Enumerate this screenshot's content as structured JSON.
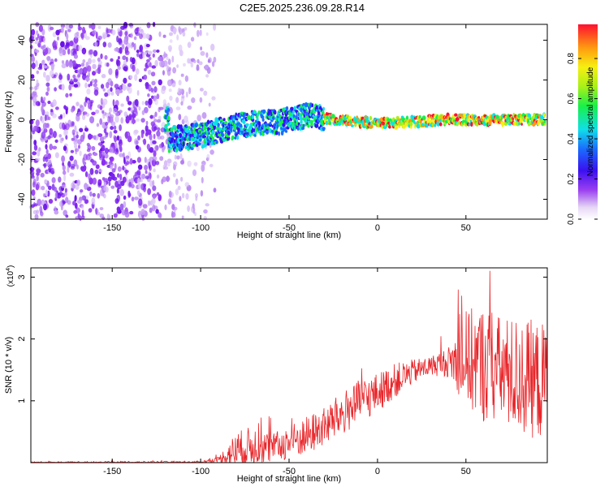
{
  "figure_title": "C2E5.2025.236.09.28.R14",
  "chart_data": [
    {
      "type": "heatmap",
      "title": "C2E5.2025.236.09.28.R14",
      "xlabel": "Height of straight line (km)",
      "ylabel": "Frequency (Hz)",
      "xlim": [
        -196,
        96
      ],
      "ylim": [
        -50,
        48
      ],
      "xticks": [
        -150,
        -100,
        -50,
        0,
        50
      ],
      "yticks": [
        -40,
        -20,
        0,
        20,
        40
      ],
      "colorbar": {
        "label": "Normalized spectral amplitude",
        "range": [
          0,
          0.97
        ],
        "ticks": [
          0.0,
          0.2,
          0.4,
          0.6,
          0.8
        ],
        "tick_labels": [
          "0.0",
          "0.2",
          "0.4",
          "0.6",
          "0.8"
        ],
        "colormap": "rainbow (purple-blue-cyan-green-yellow-red)"
      },
      "description_values": {
        "noise_region_x": [
          -196,
          -100
        ],
        "ridge": [
          {
            "x": -118,
            "y": -10
          },
          {
            "x": -100,
            "y": -8
          },
          {
            "x": -85,
            "y": -4
          },
          {
            "x": -70,
            "y": -2
          },
          {
            "x": -55,
            "y": -1
          },
          {
            "x": -40,
            "y": 2
          },
          {
            "x": -30,
            "y": 1
          },
          {
            "x": 0,
            "y": -2
          },
          {
            "x": 40,
            "y": 0
          },
          {
            "x": 96,
            "y": 0
          }
        ]
      }
    },
    {
      "type": "line",
      "xlabel": "Height of straight line (km)",
      "ylabel": "SNR (10 * v/v)",
      "y_multiplier_label": "(x10",
      "y_multiplier_exp": "4",
      "xlim": [
        -196,
        96
      ],
      "ylim": [
        0,
        3.15
      ],
      "xticks": [
        -150,
        -100,
        -50,
        0,
        50
      ],
      "yticks": [
        1,
        2,
        3
      ],
      "series": [
        {
          "name": "SNR",
          "color": "#e8262a",
          "envelope": [
            {
              "x": -196,
              "base": 0.0,
              "amp": 0.02
            },
            {
              "x": -100,
              "base": 0.0,
              "amp": 0.03
            },
            {
              "x": -90,
              "base": 0.05,
              "amp": 0.05
            },
            {
              "x": -80,
              "base": 0.15,
              "amp": 0.4
            },
            {
              "x": -70,
              "base": 0.25,
              "amp": 0.4
            },
            {
              "x": -60,
              "base": 0.2,
              "amp": 0.3
            },
            {
              "x": -50,
              "base": 0.3,
              "amp": 0.35
            },
            {
              "x": -40,
              "base": 0.4,
              "amp": 0.4
            },
            {
              "x": -30,
              "base": 0.55,
              "amp": 0.4
            },
            {
              "x": -20,
              "base": 0.75,
              "amp": 0.45
            },
            {
              "x": -10,
              "base": 0.95,
              "amp": 0.45
            },
            {
              "x": 0,
              "base": 1.1,
              "amp": 0.4
            },
            {
              "x": 10,
              "base": 1.3,
              "amp": 0.35
            },
            {
              "x": 20,
              "base": 1.45,
              "amp": 0.25
            },
            {
              "x": 30,
              "base": 1.55,
              "amp": 0.2
            },
            {
              "x": 40,
              "base": 1.6,
              "amp": 0.3
            },
            {
              "x": 50,
              "base": 1.6,
              "amp": 1.0
            },
            {
              "x": 60,
              "base": 1.5,
              "amp": 1.2
            },
            {
              "x": 70,
              "base": 1.4,
              "amp": 1.1
            },
            {
              "x": 80,
              "base": 1.3,
              "amp": 1.2
            },
            {
              "x": 96,
              "base": 1.2,
              "amp": 1.2
            }
          ]
        }
      ]
    }
  ],
  "colors": {
    "snr_line": "#e8262a",
    "background": "#ffffff",
    "axis": "#000000"
  }
}
